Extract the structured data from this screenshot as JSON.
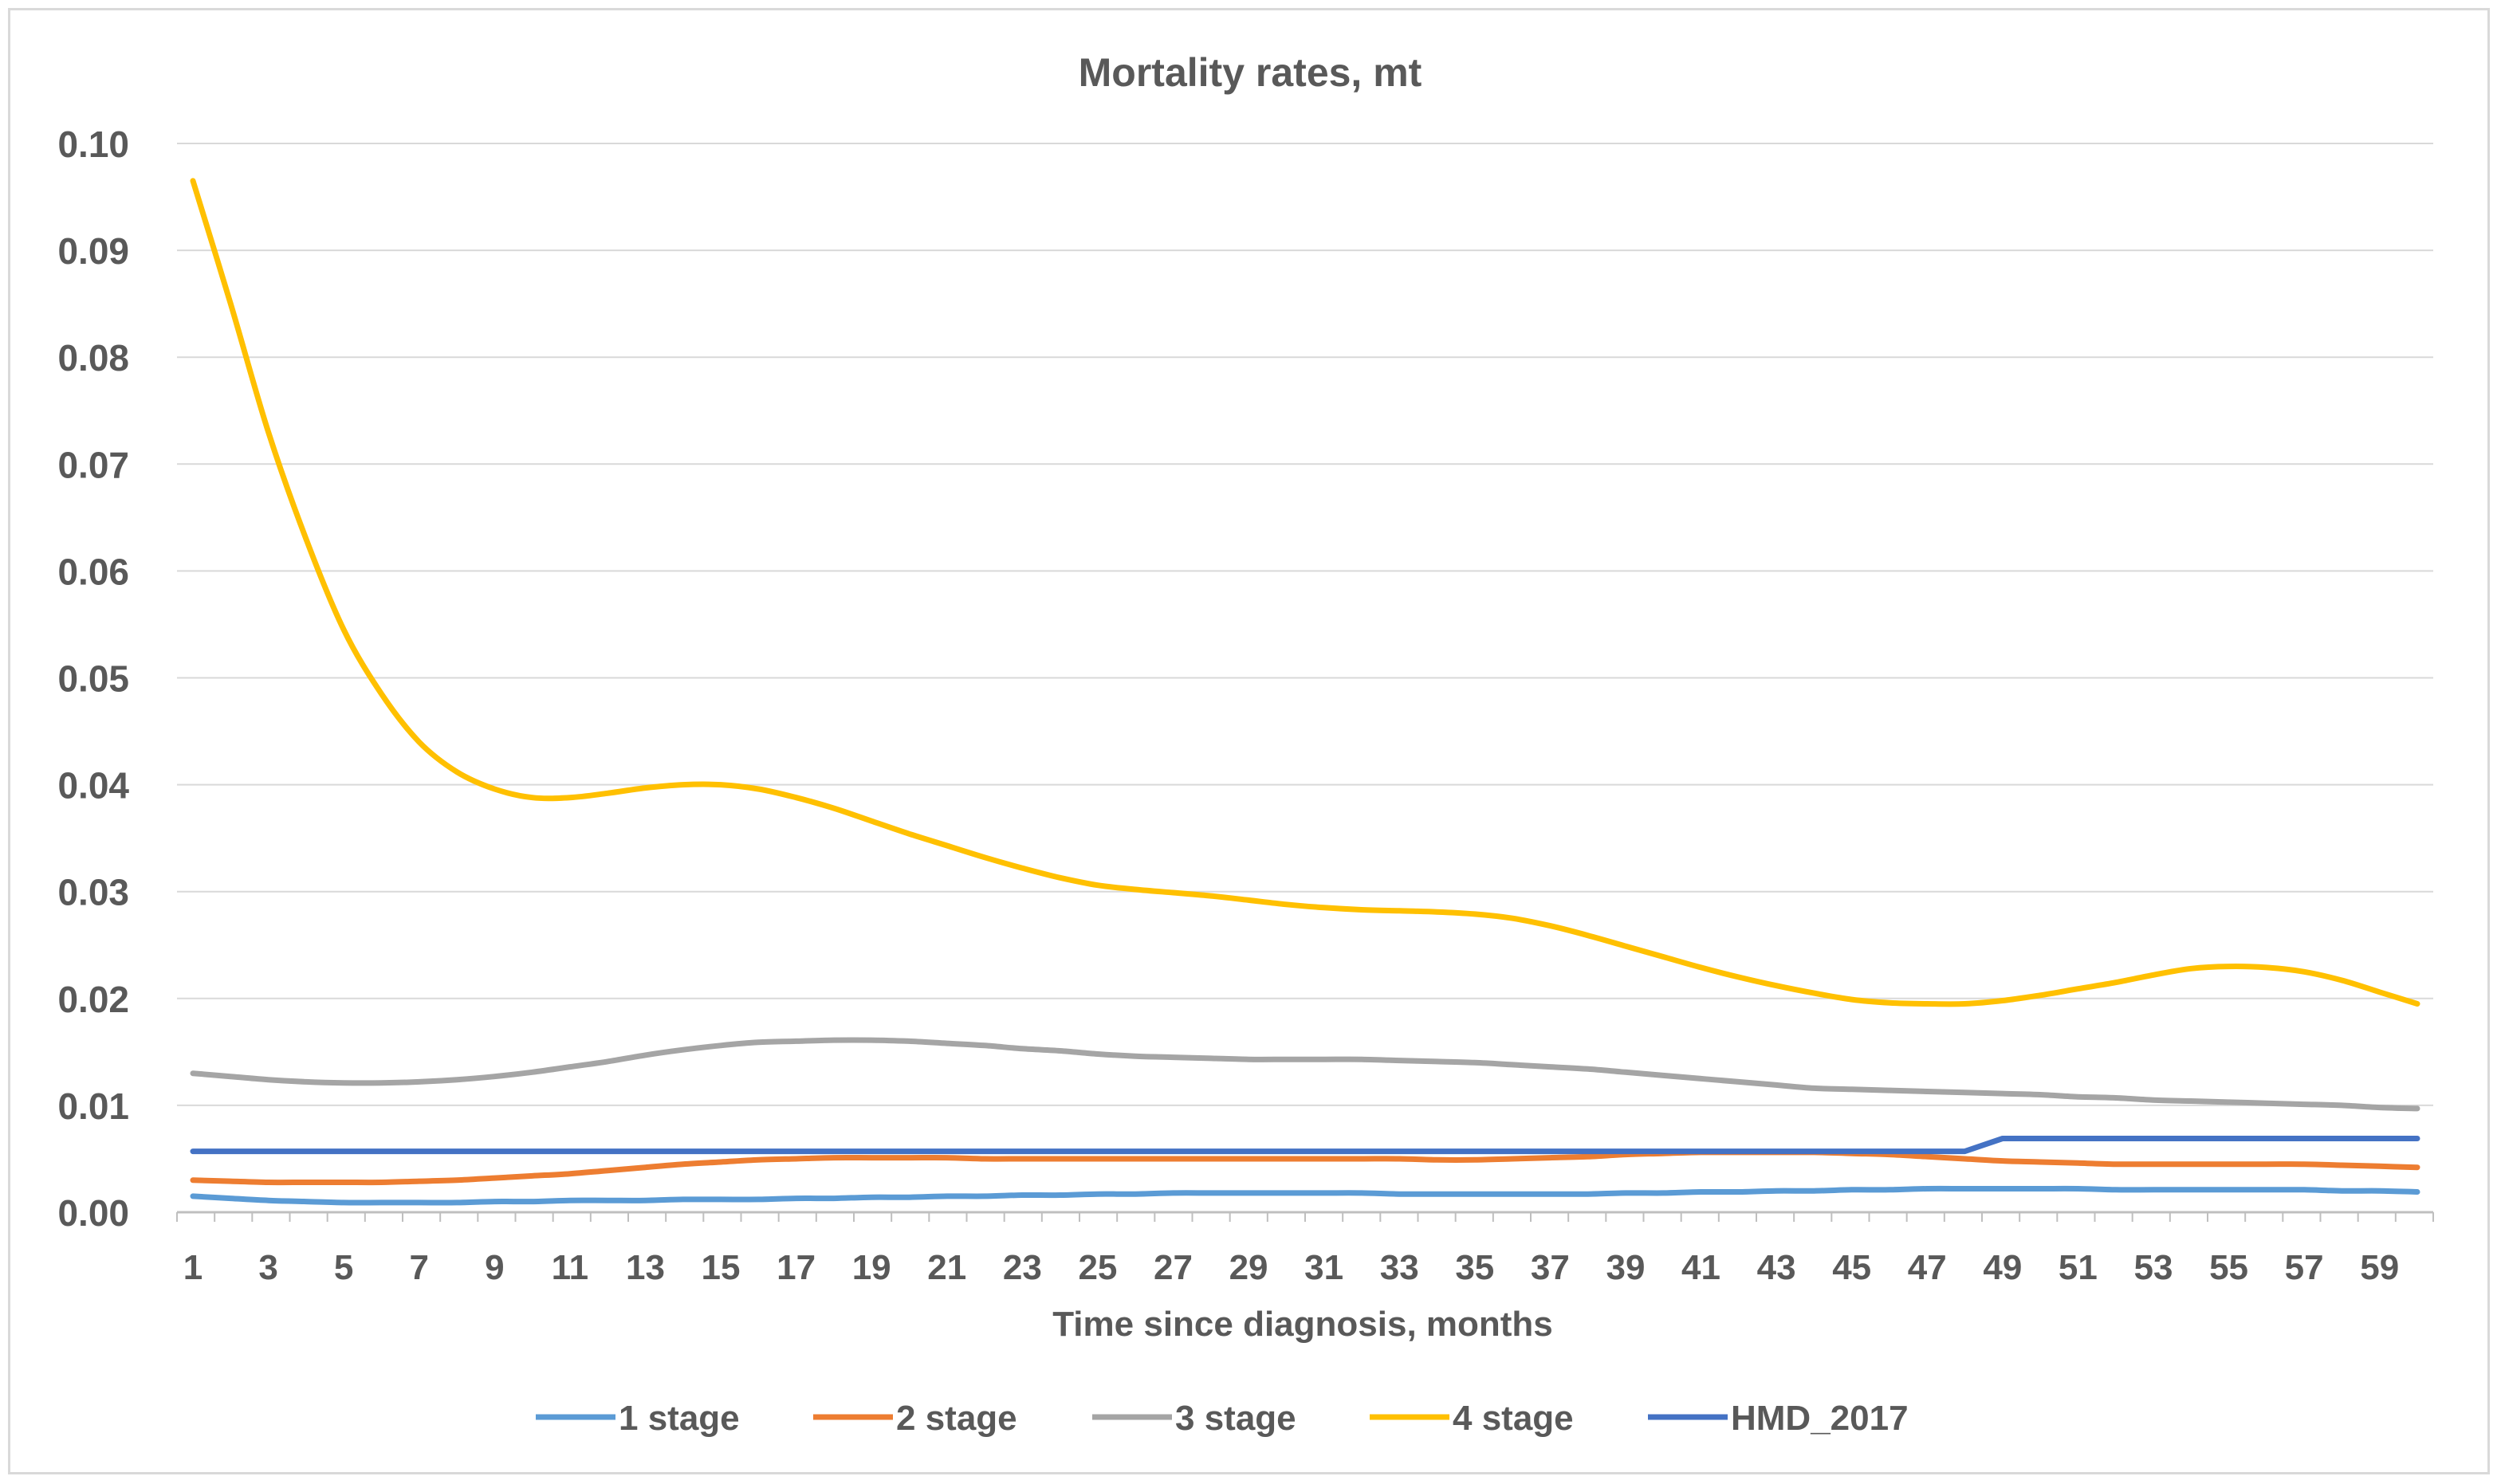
{
  "chart_data": {
    "type": "line",
    "title": "Mortality rates, mt",
    "xlabel": "Time since diagnosis, months",
    "ylabel": "",
    "x": [
      1,
      2,
      3,
      4,
      5,
      6,
      7,
      8,
      9,
      10,
      11,
      12,
      13,
      14,
      15,
      16,
      17,
      18,
      19,
      20,
      21,
      22,
      23,
      24,
      25,
      26,
      27,
      28,
      29,
      30,
      31,
      32,
      33,
      34,
      35,
      36,
      37,
      38,
      39,
      40,
      41,
      42,
      43,
      44,
      45,
      46,
      47,
      48,
      49,
      50,
      51,
      52,
      53,
      54,
      55,
      56,
      57,
      58,
      59,
      60
    ],
    "x_tick_labels": [
      "1",
      "3",
      "5",
      "7",
      "9",
      "11",
      "13",
      "15",
      "17",
      "19",
      "21",
      "23",
      "25",
      "27",
      "29",
      "31",
      "33",
      "35",
      "37",
      "39",
      "41",
      "43",
      "45",
      "47",
      "49",
      "51",
      "53",
      "55",
      "57",
      "59"
    ],
    "ylim": [
      0,
      0.1
    ],
    "y_ticks": [
      0,
      0.01,
      0.02,
      0.03,
      0.04,
      0.05,
      0.06,
      0.07,
      0.08,
      0.09,
      0.1
    ],
    "y_tick_labels": [
      "0.00",
      "0.01",
      "0.02",
      "0.03",
      "0.04",
      "0.05",
      "0.06",
      "0.07",
      "0.08",
      "0.09",
      "0.10"
    ],
    "grid": true,
    "legend_position": "bottom",
    "series": [
      {
        "name": "1 stage",
        "color": "#5b9bd5",
        "values": [
          0.0015,
          0.0013,
          0.0011,
          0.001,
          0.0009,
          0.0009,
          0.0009,
          0.0009,
          0.001,
          0.001,
          0.0011,
          0.0011,
          0.0011,
          0.0012,
          0.0012,
          0.0012,
          0.0013,
          0.0013,
          0.0014,
          0.0014,
          0.0015,
          0.0015,
          0.0016,
          0.0016,
          0.0017,
          0.0017,
          0.0018,
          0.0018,
          0.0018,
          0.0018,
          0.0018,
          0.0018,
          0.0017,
          0.0017,
          0.0017,
          0.0017,
          0.0017,
          0.0017,
          0.0018,
          0.0018,
          0.0019,
          0.0019,
          0.002,
          0.002,
          0.0021,
          0.0021,
          0.0022,
          0.0022,
          0.0022,
          0.0022,
          0.0022,
          0.0021,
          0.0021,
          0.0021,
          0.0021,
          0.0021,
          0.0021,
          0.002,
          0.002,
          0.0019
        ]
      },
      {
        "name": "2 stage",
        "color": "#ed7d31",
        "values": [
          0.003,
          0.0029,
          0.0028,
          0.0028,
          0.0028,
          0.0028,
          0.0029,
          0.003,
          0.0032,
          0.0034,
          0.0036,
          0.0039,
          0.0042,
          0.0045,
          0.0047,
          0.0049,
          0.005,
          0.0051,
          0.0051,
          0.0051,
          0.0051,
          0.005,
          0.005,
          0.005,
          0.005,
          0.005,
          0.005,
          0.005,
          0.005,
          0.005,
          0.005,
          0.005,
          0.005,
          0.0049,
          0.0049,
          0.005,
          0.0051,
          0.0052,
          0.0054,
          0.0055,
          0.0056,
          0.0056,
          0.0056,
          0.0056,
          0.0055,
          0.0054,
          0.0052,
          0.005,
          0.0048,
          0.0047,
          0.0046,
          0.0045,
          0.0045,
          0.0045,
          0.0045,
          0.0045,
          0.0045,
          0.0044,
          0.0043,
          0.0042
        ]
      },
      {
        "name": "3 stage",
        "color": "#a5a5a5",
        "values": [
          0.013,
          0.0127,
          0.0124,
          0.0122,
          0.0121,
          0.0121,
          0.0122,
          0.0124,
          0.0127,
          0.0131,
          0.0136,
          0.0141,
          0.0147,
          0.0152,
          0.0156,
          0.0159,
          0.016,
          0.0161,
          0.0161,
          0.016,
          0.0158,
          0.0156,
          0.0153,
          0.0151,
          0.0148,
          0.0146,
          0.0145,
          0.0144,
          0.0143,
          0.0143,
          0.0143,
          0.0143,
          0.0142,
          0.0141,
          0.014,
          0.0138,
          0.0136,
          0.0134,
          0.0131,
          0.0128,
          0.0125,
          0.0122,
          0.0119,
          0.0116,
          0.0115,
          0.0114,
          0.0113,
          0.0112,
          0.0111,
          0.011,
          0.0108,
          0.0107,
          0.0105,
          0.0104,
          0.0103,
          0.0102,
          0.0101,
          0.01,
          0.0098,
          0.0097
        ]
      },
      {
        "name": "4 stage",
        "color": "#ffc000",
        "values": [
          0.0965,
          0.085,
          0.073,
          0.063,
          0.0545,
          0.0485,
          0.044,
          0.0412,
          0.0396,
          0.0388,
          0.0388,
          0.0392,
          0.0397,
          0.04,
          0.04,
          0.0396,
          0.0388,
          0.0378,
          0.0366,
          0.0354,
          0.0343,
          0.0332,
          0.0322,
          0.0313,
          0.0306,
          0.0302,
          0.0299,
          0.0296,
          0.0292,
          0.0288,
          0.0285,
          0.0283,
          0.0282,
          0.0281,
          0.0279,
          0.0275,
          0.0268,
          0.0259,
          0.0249,
          0.0239,
          0.0229,
          0.022,
          0.0212,
          0.0205,
          0.0199,
          0.0196,
          0.0195,
          0.0195,
          0.0198,
          0.0203,
          0.0209,
          0.0215,
          0.0222,
          0.0228,
          0.023,
          0.0229,
          0.0225,
          0.0217,
          0.0206,
          0.0195
        ]
      },
      {
        "name": "HMD_2017",
        "color": "#4472c4",
        "values": [
          0.0057,
          0.0057,
          0.0057,
          0.0057,
          0.0057,
          0.0057,
          0.0057,
          0.0057,
          0.0057,
          0.0057,
          0.0057,
          0.0057,
          0.0057,
          0.0057,
          0.0057,
          0.0057,
          0.0057,
          0.0057,
          0.0057,
          0.0057,
          0.0057,
          0.0057,
          0.0057,
          0.0057,
          0.0057,
          0.0057,
          0.0057,
          0.0057,
          0.0057,
          0.0057,
          0.0057,
          0.0057,
          0.0057,
          0.0057,
          0.0057,
          0.0057,
          0.0057,
          0.0057,
          0.0057,
          0.0057,
          0.0057,
          0.0057,
          0.0057,
          0.0057,
          0.0057,
          0.0057,
          0.0057,
          0.0057,
          0.0069,
          0.0069,
          0.0069,
          0.0069,
          0.0069,
          0.0069,
          0.0069,
          0.0069,
          0.0069,
          0.0069,
          0.0069,
          0.0069
        ]
      }
    ]
  }
}
